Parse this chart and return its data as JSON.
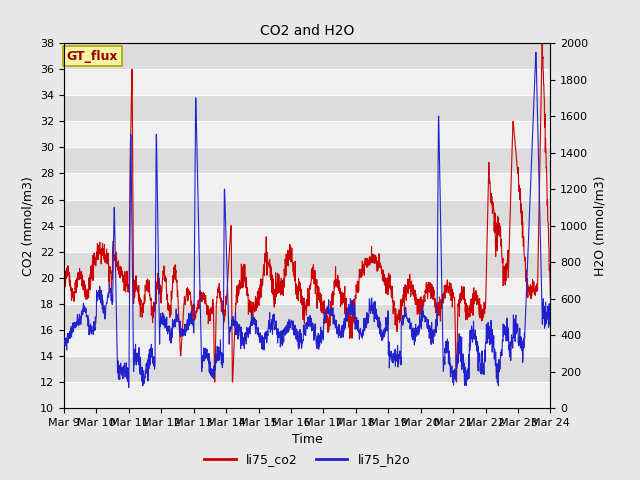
{
  "title": "CO2 and H2O",
  "xlabel": "Time",
  "ylabel_left": "CO2 (mmol/m3)",
  "ylabel_right": "H2O (mmol/m3)",
  "ylim_left": [
    10,
    38
  ],
  "ylim_right": [
    0,
    2000
  ],
  "yticks_left": [
    10,
    12,
    14,
    16,
    18,
    20,
    22,
    24,
    26,
    28,
    30,
    32,
    34,
    36,
    38
  ],
  "yticks_right": [
    0,
    200,
    400,
    600,
    800,
    1000,
    1200,
    1400,
    1600,
    1800,
    2000
  ],
  "annotation_text": "GT_flux",
  "legend_labels": [
    "li75_co2",
    "li75_h2o"
  ],
  "co2_color": "#cc0000",
  "h2o_color": "#2222cc",
  "outer_bg": "#e8e8e8",
  "plot_bg": "#e8e8e8",
  "band_light": "#f0f0f0",
  "band_dark": "#dcdcdc",
  "n_points": 2000,
  "title_fontsize": 10,
  "axis_fontsize": 9,
  "tick_fontsize": 8
}
